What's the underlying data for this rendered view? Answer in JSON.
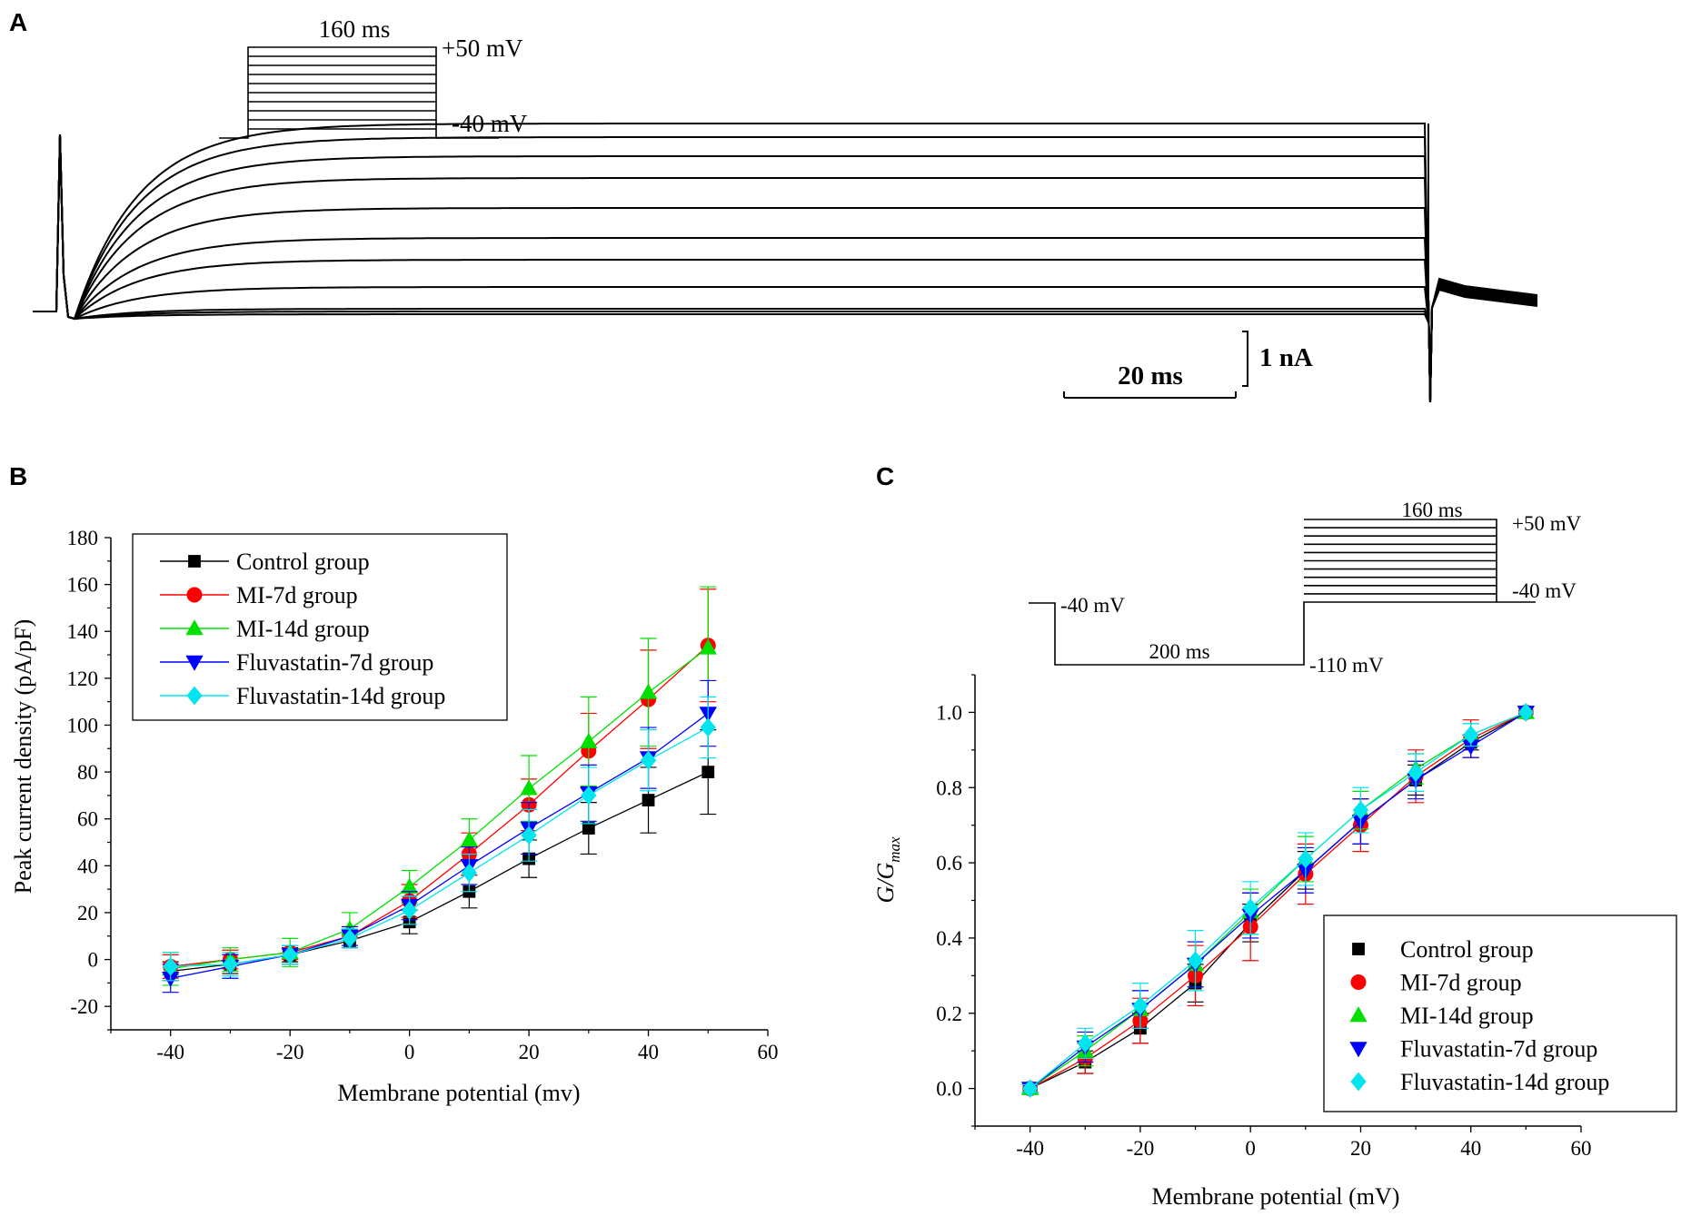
{
  "figure": {
    "panel_labels": [
      "A",
      "B",
      "C"
    ]
  },
  "panel_a": {
    "protocol": {
      "duration_label": "160 ms",
      "top_voltage_label": "+50 mV",
      "holding_voltage_label": "-40 mV"
    },
    "scale_bar": {
      "time_label": "20 ms",
      "current_label": "1 nA"
    },
    "traces_steady_nA": [
      -0.05,
      0.0,
      0.05,
      0.45,
      0.95,
      1.35,
      1.9,
      2.45,
      2.85,
      3.2,
      3.45
    ]
  },
  "panel_c_protocol": {
    "duration_top_label": "160 ms",
    "top_voltage_label": "+50 mV",
    "step_low_label": "-40 mV",
    "holding_voltage_label": "-40 mV",
    "prepulse_duration_label": "200 ms",
    "prepulse_voltage_label": "-110 mV"
  },
  "colors": {
    "control": "#000000",
    "mi7": "#ff0000",
    "mi14": "#00e000",
    "flu7": "#0000ff",
    "flu14": "#00e5ee"
  },
  "chart_data": [
    {
      "id": "B",
      "type": "line",
      "title": "",
      "xlabel": "Membrane potential (mv)",
      "ylabel": "Peak current density (pA/pF)",
      "xlim": [
        -50,
        60
      ],
      "ylim": [
        -30,
        180
      ],
      "xticks": [
        -40,
        -20,
        0,
        20,
        40,
        60
      ],
      "yticks": [
        -20,
        0,
        20,
        40,
        60,
        80,
        100,
        120,
        140,
        160,
        180
      ],
      "legend_position": "top-left",
      "x": [
        -40,
        -30,
        -20,
        -10,
        0,
        10,
        20,
        30,
        40,
        50
      ],
      "series": [
        {
          "name": "Control group",
          "key": "control",
          "marker": "square",
          "values": [
            -5,
            -2,
            2,
            8,
            16,
            29,
            43,
            56,
            68,
            80
          ],
          "errors": [
            4,
            4,
            3,
            3,
            5,
            7,
            8,
            11,
            14,
            18
          ]
        },
        {
          "name": "MI-7d group",
          "key": "mi7",
          "marker": "circle",
          "values": [
            -3,
            0,
            3,
            10,
            25,
            45,
            66,
            89,
            111,
            134
          ],
          "errors": [
            5,
            4,
            3,
            4,
            7,
            9,
            11,
            16,
            21,
            24
          ]
        },
        {
          "name": "MI-14d group",
          "key": "mi14",
          "marker": "triangle-up",
          "values": [
            -4,
            0,
            3,
            13,
            31,
            51,
            73,
            93,
            114,
            133
          ],
          "errors": [
            7,
            5,
            6,
            7,
            7,
            9,
            14,
            19,
            23,
            26
          ]
        },
        {
          "name": "Fluvastatin-7d group",
          "key": "flu7",
          "marker": "triangle-down",
          "values": [
            -8,
            -3,
            2,
            10,
            23,
            40,
            56,
            71,
            86,
            105
          ],
          "errors": [
            6,
            5,
            4,
            4,
            6,
            8,
            11,
            12,
            13,
            14
          ]
        },
        {
          "name": "Fluvastatin-14d group",
          "key": "flu14",
          "marker": "diamond",
          "values": [
            -3,
            -2,
            2,
            9,
            21,
            37,
            53,
            70,
            85,
            99
          ],
          "errors": [
            6,
            5,
            4,
            4,
            6,
            8,
            11,
            12,
            13,
            13
          ]
        }
      ]
    },
    {
      "id": "C",
      "type": "line",
      "title": "",
      "xlabel": "Membrane potential (mV)",
      "ylabel": "G/G",
      "ylabel_subscript": "max",
      "xlim": [
        -50,
        60
      ],
      "ylim": [
        -0.1,
        1.1
      ],
      "xticks": [
        -40,
        -20,
        0,
        20,
        40,
        60
      ],
      "yticks": [
        0.0,
        0.2,
        0.4,
        0.6,
        0.8,
        1.0
      ],
      "ytick_labels": [
        "0.0",
        "0.2",
        "0.4",
        "0.6",
        "0.8",
        "1.0"
      ],
      "legend_position": "bottom-right",
      "x": [
        -40,
        -30,
        -20,
        -10,
        0,
        10,
        20,
        30,
        40,
        50
      ],
      "series": [
        {
          "name": "Control group",
          "key": "control",
          "marker": "square",
          "values": [
            0.0,
            0.07,
            0.16,
            0.28,
            0.44,
            0.58,
            0.71,
            0.82,
            0.92,
            1.0
          ],
          "errors": [
            0.01,
            0.03,
            0.04,
            0.05,
            0.05,
            0.05,
            0.06,
            0.04,
            0.02,
            0.0
          ]
        },
        {
          "name": "MI-7d group",
          "key": "mi7",
          "marker": "circle",
          "values": [
            0.0,
            0.08,
            0.18,
            0.3,
            0.43,
            0.57,
            0.7,
            0.83,
            0.93,
            1.0
          ],
          "errors": [
            0.01,
            0.04,
            0.06,
            0.08,
            0.09,
            0.08,
            0.07,
            0.07,
            0.05,
            0.0
          ]
        },
        {
          "name": "MI-14d group",
          "key": "mi14",
          "marker": "triangle-up",
          "values": [
            0.0,
            0.1,
            0.21,
            0.33,
            0.47,
            0.61,
            0.74,
            0.85,
            0.94,
            1.0
          ],
          "errors": [
            0.01,
            0.04,
            0.05,
            0.06,
            0.06,
            0.06,
            0.05,
            0.04,
            0.03,
            0.0
          ]
        },
        {
          "name": "Fluvastatin-7d group",
          "key": "flu7",
          "marker": "triangle-down",
          "values": [
            0.0,
            0.11,
            0.21,
            0.33,
            0.46,
            0.58,
            0.71,
            0.82,
            0.91,
            1.0
          ],
          "errors": [
            0.01,
            0.04,
            0.05,
            0.06,
            0.06,
            0.06,
            0.06,
            0.05,
            0.03,
            0.0
          ]
        },
        {
          "name": "Fluvastatin-14d group",
          "key": "flu14",
          "marker": "diamond",
          "values": [
            0.0,
            0.12,
            0.22,
            0.34,
            0.48,
            0.61,
            0.74,
            0.84,
            0.94,
            1.0
          ],
          "errors": [
            0.01,
            0.04,
            0.06,
            0.08,
            0.07,
            0.07,
            0.06,
            0.05,
            0.03,
            0.0
          ]
        }
      ]
    }
  ]
}
